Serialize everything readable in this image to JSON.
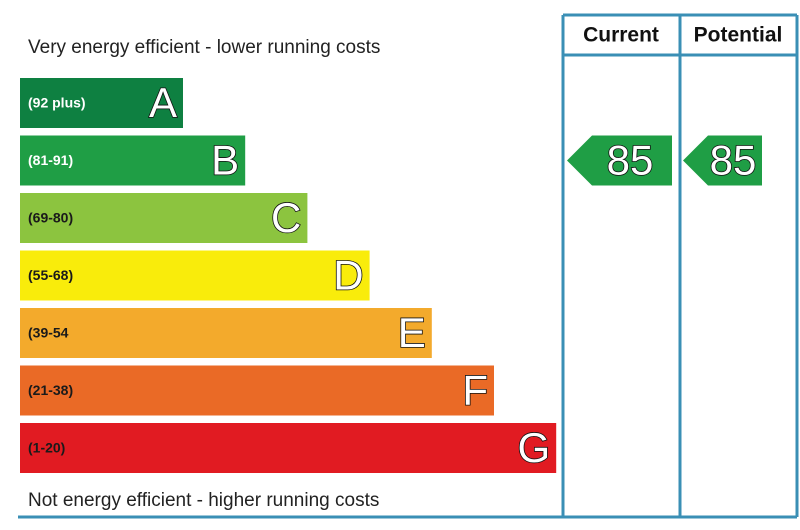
{
  "header": {
    "top_note": "Very energy efficient - lower running costs",
    "bottom_note": "Not energy efficient - higher running costs",
    "current_label": "Current",
    "potential_label": "Potential"
  },
  "bands": [
    {
      "range": "(92 plus)",
      "letter": "A",
      "color": "#0e8041",
      "text_color": "#ffffff"
    },
    {
      "range": "(81-91)",
      "letter": "B",
      "color": "#1f9e45",
      "text_color": "#ffffff"
    },
    {
      "range": "(69-80)",
      "letter": "C",
      "color": "#8cc43f",
      "text_color": "#1a1a1a"
    },
    {
      "range": "(55-68)",
      "letter": "D",
      "color": "#f9ec0b",
      "text_color": "#1a1a1a"
    },
    {
      "range": "(39-54",
      "letter": "E",
      "color": "#f3aa2c",
      "text_color": "#1a1a1a"
    },
    {
      "range": "(21-38)",
      "letter": "F",
      "color": "#ea6a26",
      "text_color": "#1a1a1a"
    },
    {
      "range": "(1-20)",
      "letter": "G",
      "color": "#e11b22",
      "text_color": "#1a1a1a"
    }
  ],
  "ratings": {
    "current": 85,
    "potential": 85
  }
}
